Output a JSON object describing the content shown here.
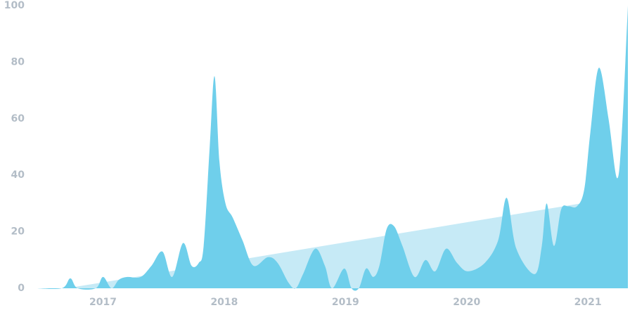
{
  "chart_data": {
    "type": "area",
    "xlim": [
      2016.44,
      2021.33
    ],
    "xticks": [
      2017,
      2018,
      2019,
      2020,
      2021
    ],
    "ylim": [
      0,
      100
    ],
    "yticks": [
      0,
      20,
      40,
      60,
      80,
      100
    ],
    "series": [
      {
        "color": "#c6eaf6",
        "x": [
          2016.7,
          2020.94
        ],
        "values": [
          0,
          30
        ]
      },
      {
        "color": "#6fcfeb",
        "x": [
          2016.44,
          2016.66,
          2016.73,
          2016.79,
          2016.94,
          2017.0,
          2017.07,
          2017.13,
          2017.2,
          2017.31,
          2017.4,
          2017.49,
          2017.57,
          2017.66,
          2017.73,
          2017.79,
          2017.83,
          2017.88,
          2017.92,
          2017.96,
          2018.01,
          2018.07,
          2018.15,
          2018.24,
          2018.36,
          2018.44,
          2018.53,
          2018.59,
          2018.65,
          2018.75,
          2018.83,
          2018.89,
          2018.99,
          2019.05,
          2019.11,
          2019.17,
          2019.23,
          2019.28,
          2019.34,
          2019.4,
          2019.47,
          2019.57,
          2019.66,
          2019.74,
          2019.83,
          2019.92,
          2020.01,
          2020.15,
          2020.26,
          2020.33,
          2020.41,
          2020.56,
          2020.62,
          2020.66,
          2020.72,
          2020.78,
          2020.84,
          2020.91,
          2020.97,
          2021.02,
          2021.09,
          2021.17,
          2021.24,
          2021.28,
          2021.33
        ],
        "values": [
          0,
          0,
          3.5,
          0,
          0,
          4,
          0,
          3,
          4,
          4,
          8,
          13,
          4,
          16,
          8,
          9,
          15,
          50,
          75,
          45,
          30,
          25,
          17,
          8,
          11,
          9,
          2,
          0,
          5,
          14,
          8,
          0,
          7,
          0,
          0,
          7,
          4,
          8,
          21,
          22,
          15,
          4,
          10,
          6,
          14,
          9,
          6,
          9,
          17,
          32,
          14,
          5,
          15,
          30,
          15,
          28,
          29,
          29,
          35,
          55,
          78,
          60,
          39,
          55,
          100
        ]
      }
    ]
  }
}
